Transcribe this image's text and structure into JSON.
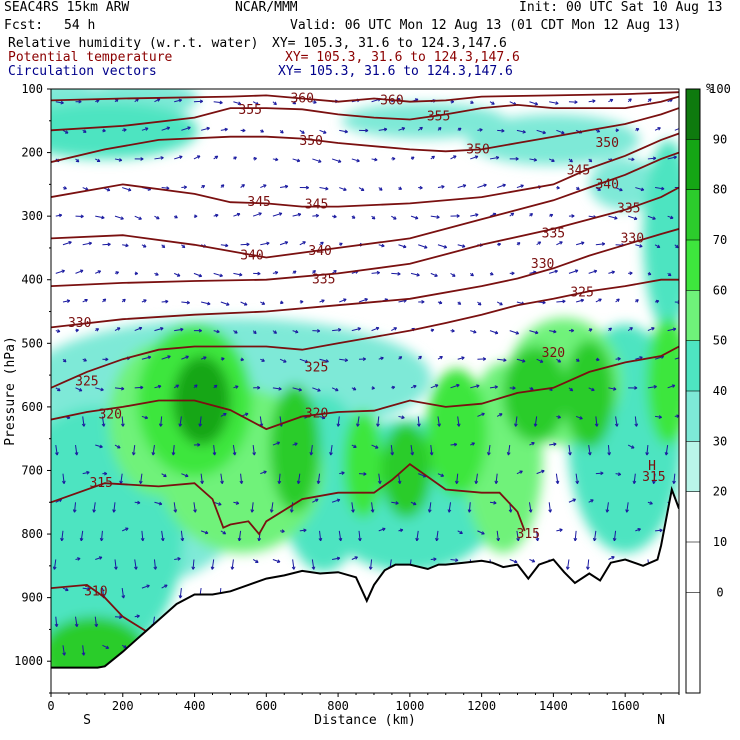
{
  "header": {
    "model": "SEAC4RS 15km ARW",
    "center": "NCAR/MMM",
    "init": "Init: 00 UTC Sat 10 Aug 13",
    "fcst_label": "Fcst:",
    "fcst_value": "54 h",
    "valid": "Valid: 06 UTC Mon 12 Aug 13 (01 CDT Mon 12 Aug 13)",
    "lines": [
      {
        "field": "Relative humidity (w.r.t. water)",
        "xy": "XY= 105.3, 31.6 to 124.3,147.6",
        "color": "#000000"
      },
      {
        "field": "Potential temperature",
        "xy": "XY= 105.3, 31.6 to 124.3,147.6",
        "color": "#8b0000"
      },
      {
        "field": "Circulation vectors",
        "xy": "XY= 105.3, 31.6 to 124.3,147.6",
        "color": "#00008b"
      }
    ]
  },
  "chart_data": {
    "type": "heatmap",
    "title": "Relative humidity (w.r.t. water)",
    "xlabel": "Distance (km)",
    "ylabel": "Pressure (hPa)",
    "xlim": [
      0,
      1750
    ],
    "ylim": [
      1050,
      100
    ],
    "x_ticks": [
      0,
      200,
      400,
      600,
      800,
      1000,
      1200,
      1400,
      1600
    ],
    "y_ticks": [
      100,
      200,
      300,
      400,
      500,
      600,
      700,
      800,
      900,
      1000
    ],
    "x_end_labels": {
      "left": "S",
      "right": "N"
    },
    "colorbar": {
      "unit": "%",
      "levels": [
        -10,
        0,
        10,
        20,
        30,
        40,
        50,
        60,
        70,
        80,
        90,
        100,
        110
      ],
      "tick_labels": [
        "0",
        "10",
        "20",
        "30",
        "40",
        "50",
        "60",
        "70",
        "80",
        "90",
        "100"
      ],
      "colors": [
        "#ffffff",
        "#ffffff",
        "#ffffff",
        "#ffffff",
        "#b9f5e9",
        "#7ee9d7",
        "#4ee4c1",
        "#6ff27a",
        "#3ee63d",
        "#2ccc2c",
        "#15a615",
        "#0e7a0e"
      ]
    },
    "rh_blobs": [
      {
        "x": 40,
        "p": 120,
        "rx": 110,
        "rp": 35,
        "rh": 45
      },
      {
        "x": 250,
        "p": 115,
        "rx": 160,
        "rp": 30,
        "rh": 42
      },
      {
        "x": 150,
        "p": 165,
        "rx": 260,
        "rp": 45,
        "rh": 50
      },
      {
        "x": 500,
        "p": 555,
        "rx": 560,
        "rp": 95,
        "rh": 48
      },
      {
        "x": 250,
        "p": 700,
        "rx": 330,
        "rp": 180,
        "rh": 45
      },
      {
        "x": 120,
        "p": 800,
        "rx": 250,
        "rp": 200,
        "rh": 50
      },
      {
        "x": 400,
        "p": 590,
        "rx": 160,
        "rp": 120,
        "rh": 72
      },
      {
        "x": 420,
        "p": 590,
        "rx": 80,
        "rp": 70,
        "rh": 94
      },
      {
        "x": 300,
        "p": 620,
        "rx": 140,
        "rp": 120,
        "rh": 63
      },
      {
        "x": 530,
        "p": 700,
        "rx": 230,
        "rp": 130,
        "rh": 65
      },
      {
        "x": 680,
        "p": 665,
        "rx": 70,
        "rp": 100,
        "rh": 82
      },
      {
        "x": 760,
        "p": 720,
        "rx": 120,
        "rp": 140,
        "rh": 55
      },
      {
        "x": 870,
        "p": 690,
        "rx": 55,
        "rp": 85,
        "rh": 72
      },
      {
        "x": 990,
        "p": 700,
        "rx": 70,
        "rp": 75,
        "rh": 88
      },
      {
        "x": 1000,
        "p": 740,
        "rx": 260,
        "rp": 120,
        "rh": 58
      },
      {
        "x": 1130,
        "p": 640,
        "rx": 85,
        "rp": 100,
        "rh": 70
      },
      {
        "x": 1260,
        "p": 680,
        "rx": 110,
        "rp": 150,
        "rh": 68
      },
      {
        "x": 1350,
        "p": 580,
        "rx": 90,
        "rp": 75,
        "rh": 86
      },
      {
        "x": 1430,
        "p": 560,
        "rx": 160,
        "rp": 100,
        "rh": 65
      },
      {
        "x": 1500,
        "p": 580,
        "rx": 70,
        "rp": 85,
        "rh": 86
      },
      {
        "x": 1600,
        "p": 650,
        "rx": 160,
        "rp": 180,
        "rh": 52
      },
      {
        "x": 1720,
        "p": 560,
        "rx": 60,
        "rp": 100,
        "rh": 76
      },
      {
        "x": 1720,
        "p": 330,
        "rx": 70,
        "rp": 150,
        "rh": 55
      },
      {
        "x": 120,
        "p": 990,
        "rx": 150,
        "rp": 60,
        "rh": 80
      },
      {
        "x": 60,
        "p": 880,
        "rx": 100,
        "rp": 90,
        "rh": 58
      },
      {
        "x": 1040,
        "p": 150,
        "rx": 230,
        "rp": 28,
        "rh": 48
      },
      {
        "x": 1400,
        "p": 180,
        "rx": 240,
        "rp": 40,
        "rh": 45
      },
      {
        "x": 1600,
        "p": 250,
        "rx": 100,
        "rp": 40,
        "rh": 42
      }
    ],
    "terrain": {
      "x": [
        0,
        130,
        150,
        200,
        250,
        300,
        350,
        400,
        450,
        500,
        550,
        600,
        650,
        700,
        750,
        800,
        850,
        880,
        900,
        930,
        960,
        1000,
        1050,
        1080,
        1100,
        1150,
        1200,
        1230,
        1260,
        1300,
        1330,
        1360,
        1400,
        1430,
        1460,
        1500,
        1530,
        1560,
        1600,
        1650,
        1690,
        1700,
        1730,
        1750
      ],
      "p": [
        1010,
        1010,
        1008,
        985,
        960,
        935,
        910,
        895,
        895,
        890,
        880,
        870,
        865,
        858,
        862,
        860,
        868,
        905,
        880,
        857,
        848,
        848,
        855,
        848,
        848,
        845,
        842,
        845,
        852,
        848,
        870,
        848,
        840,
        860,
        877,
        862,
        873,
        845,
        840,
        850,
        840,
        818,
        730,
        760
      ]
    },
    "theta_contours": [
      {
        "level": 310,
        "x": [
          0,
          100,
          150,
          200,
          300,
          350
        ],
        "p": [
          885,
          880,
          900,
          930,
          965,
          990
        ]
      },
      {
        "level": 315,
        "x": [
          0,
          150,
          300,
          400,
          450,
          480,
          500,
          550,
          580,
          600,
          700,
          800,
          900,
          950,
          1000,
          1100,
          1200,
          1250,
          1300,
          1320
        ],
        "p": [
          750,
          720,
          725,
          720,
          745,
          790,
          785,
          780,
          800,
          780,
          745,
          735,
          735,
          715,
          690,
          730,
          735,
          735,
          765,
          795
        ]
      },
      {
        "level": 320,
        "x": [
          0,
          100,
          200,
          300,
          400,
          500,
          600,
          700,
          800,
          900,
          1000,
          1100,
          1200,
          1300,
          1400,
          1500,
          1600,
          1700,
          1750
        ],
        "p": [
          620,
          608,
          600,
          590,
          590,
          605,
          635,
          615,
          608,
          606,
          590,
          600,
          595,
          578,
          570,
          545,
          530,
          520,
          505
        ]
      },
      {
        "level": 325,
        "x": [
          0,
          100,
          200,
          300,
          400,
          500,
          600,
          700,
          800,
          900,
          1000,
          1100,
          1200,
          1300,
          1400,
          1500,
          1600,
          1700,
          1750
        ],
        "p": [
          570,
          545,
          525,
          510,
          505,
          505,
          505,
          510,
          500,
          490,
          480,
          468,
          455,
          440,
          430,
          418,
          410,
          400,
          400
        ]
      },
      {
        "level": 330,
        "x": [
          0,
          200,
          400,
          600,
          800,
          1000,
          1200,
          1300,
          1400,
          1500,
          1600,
          1700,
          1750
        ],
        "p": [
          475,
          462,
          455,
          450,
          440,
          430,
          410,
          398,
          382,
          362,
          345,
          328,
          320
        ]
      },
      {
        "level": 335,
        "x": [
          0,
          200,
          400,
          600,
          800,
          1000,
          1200,
          1400,
          1600,
          1700,
          1750
        ],
        "p": [
          410,
          405,
          402,
          400,
          390,
          375,
          345,
          320,
          290,
          270,
          255
        ]
      },
      {
        "level": 340,
        "x": [
          0,
          200,
          400,
          600,
          800,
          1000,
          1200,
          1400,
          1500,
          1600,
          1700,
          1750
        ],
        "p": [
          335,
          330,
          345,
          365,
          350,
          335,
          305,
          275,
          255,
          235,
          210,
          200
        ]
      },
      {
        "level": 345,
        "x": [
          0,
          200,
          400,
          500,
          600,
          700,
          800,
          1000,
          1200,
          1400,
          1500,
          1600,
          1700,
          1750
        ],
        "p": [
          270,
          250,
          265,
          278,
          280,
          285,
          285,
          280,
          270,
          250,
          225,
          205,
          180,
          170
        ]
      },
      {
        "level": 350,
        "x": [
          0,
          150,
          300,
          500,
          600,
          700,
          800,
          1000,
          1100,
          1200,
          1300,
          1400,
          1500,
          1600,
          1700,
          1750
        ],
        "p": [
          215,
          195,
          180,
          175,
          175,
          178,
          185,
          195,
          198,
          195,
          185,
          175,
          165,
          155,
          140,
          130
        ]
      },
      {
        "level": 355,
        "x": [
          0,
          200,
          400,
          500,
          600,
          700,
          800,
          900,
          1000,
          1100,
          1200,
          1300,
          1400,
          1500,
          1600,
          1700,
          1750
        ],
        "p": [
          165,
          158,
          145,
          130,
          130,
          132,
          140,
          145,
          148,
          140,
          130,
          125,
          130,
          130,
          130,
          120,
          112
        ]
      },
      {
        "level": 360,
        "x": [
          0,
          200,
          500,
          600,
          700,
          800,
          900,
          1000,
          1100,
          1200,
          1400,
          1600,
          1750
        ],
        "p": [
          118,
          115,
          112,
          110,
          115,
          120,
          115,
          120,
          118,
          112,
          110,
          108,
          105
        ]
      }
    ],
    "theta_labels": [
      {
        "text": "360",
        "x": 700,
        "p": 115
      },
      {
        "text": "360",
        "x": 950,
        "p": 118
      },
      {
        "text": "355",
        "x": 555,
        "p": 133
      },
      {
        "text": "355",
        "x": 1080,
        "p": 143
      },
      {
        "text": "350",
        "x": 725,
        "p": 182
      },
      {
        "text": "350",
        "x": 1190,
        "p": 195
      },
      {
        "text": "350",
        "x": 1550,
        "p": 185
      },
      {
        "text": "345",
        "x": 1470,
        "p": 228
      },
      {
        "text": "340",
        "x": 1550,
        "p": 250
      },
      {
        "text": "335",
        "x": 1610,
        "p": 288
      },
      {
        "text": "345",
        "x": 580,
        "p": 278
      },
      {
        "text": "345",
        "x": 740,
        "p": 282
      },
      {
        "text": "340",
        "x": 560,
        "p": 362
      },
      {
        "text": "340",
        "x": 750,
        "p": 355
      },
      {
        "text": "335",
        "x": 1400,
        "p": 327
      },
      {
        "text": "330",
        "x": 1620,
        "p": 335
      },
      {
        "text": "330",
        "x": 1370,
        "p": 375
      },
      {
        "text": "335",
        "x": 760,
        "p": 400
      },
      {
        "text": "325",
        "x": 1480,
        "p": 420
      },
      {
        "text": "330",
        "x": 80,
        "p": 468
      },
      {
        "text": "320",
        "x": 1400,
        "p": 515
      },
      {
        "text": "325",
        "x": 100,
        "p": 560
      },
      {
        "text": "325",
        "x": 740,
        "p": 538
      },
      {
        "text": "320",
        "x": 165,
        "p": 612
      },
      {
        "text": "320",
        "x": 740,
        "p": 610
      },
      {
        "text": "315",
        "x": 140,
        "p": 720
      },
      {
        "text": "315",
        "x": 1330,
        "p": 800
      },
      {
        "text": "310",
        "x": 125,
        "p": 890
      },
      {
        "text": "H",
        "x": 1675,
        "p": 693
      },
      {
        "text": "315",
        "x": 1680,
        "p": 710
      }
    ]
  }
}
